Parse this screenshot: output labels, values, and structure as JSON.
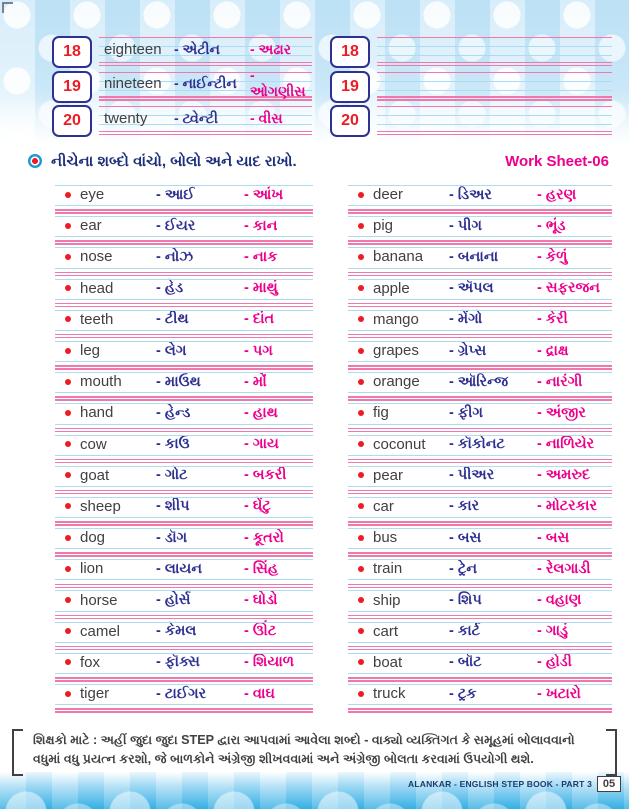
{
  "page": {
    "worksheet_label": "Work Sheet-06",
    "instruction": "નીચેના શબ્દો વાંચો, બોલો અને યાદ રાખો.",
    "note": "શિક્ષકો માટે : અહીં જુદા જુદા STEP દ્વારા આપવામાં આવેલા શબ્દો - વાક્યો વ્યક્તિગત કે સમૂહમાં બોલાવવાનો વધુમાં વધુ પ્રયત્ન કરશો, જે બાળકોને અંગ્રેજી શીખવવામાં અને અંગ્રેજી બોલતા કરવામાં ઉપયોગી થશે.",
    "footer": {
      "book_title": "ALANKAR - ENGLISH STEP BOOK - PART 3",
      "page_number": "05"
    }
  },
  "colors": {
    "magenta": "#ec008c",
    "navy": "#2e3192",
    "red": "#ed1c24",
    "pink_line": "#f078ad",
    "blue_line": "#abdcf2",
    "band_blue": "#29abe2"
  },
  "numbers_section": {
    "left": [
      {
        "num": "18",
        "word": "eighteen",
        "translit": "- એટીન",
        "meaning": "- અઢાર"
      },
      {
        "num": "19",
        "word": "nineteen",
        "translit": "- નાઈન્ટીન",
        "meaning": "- ઓગણીસ"
      },
      {
        "num": "20",
        "word": "twenty",
        "translit": "- ટ્વેન્ટી",
        "meaning": "- વીસ"
      }
    ],
    "right": [
      {
        "num": "18",
        "word": "",
        "translit": "",
        "meaning": ""
      },
      {
        "num": "19",
        "word": "",
        "translit": "",
        "meaning": ""
      },
      {
        "num": "20",
        "word": "",
        "translit": "",
        "meaning": ""
      }
    ]
  },
  "word_lists": {
    "left": [
      {
        "word": "eye",
        "translit": "- આઈ",
        "meaning": "- આંખ"
      },
      {
        "word": "ear",
        "translit": "- ઈયર",
        "meaning": "- કાન"
      },
      {
        "word": "nose",
        "translit": "- નોઝ",
        "meaning": "- નાક"
      },
      {
        "word": "head",
        "translit": "- હેડ",
        "meaning": "- માથું"
      },
      {
        "word": "teeth",
        "translit": "- ટીથ",
        "meaning": "- દાંત"
      },
      {
        "word": "leg",
        "translit": "- લેગ",
        "meaning": "- પગ"
      },
      {
        "word": "mouth",
        "translit": "- માઉથ",
        "meaning": "- મોં"
      },
      {
        "word": "hand",
        "translit": "- હેન્ડ",
        "meaning": "- હાથ"
      },
      {
        "word": "cow",
        "translit": "- કાઉ",
        "meaning": "- ગાય"
      },
      {
        "word": "goat",
        "translit": "- ગોટ",
        "meaning": "- બકરી"
      },
      {
        "word": "sheep",
        "translit": "- શીપ",
        "meaning": "- ઘેંટુ"
      },
      {
        "word": "dog",
        "translit": "- ડૉગ",
        "meaning": "- કૂતરો"
      },
      {
        "word": "lion",
        "translit": "- લાયન",
        "meaning": "- સિંહ"
      },
      {
        "word": "horse",
        "translit": "- હોર્સ",
        "meaning": "- ઘોડો"
      },
      {
        "word": "camel",
        "translit": "- કેમલ",
        "meaning": "- ઊંટ"
      },
      {
        "word": "fox",
        "translit": "- ફૉક્સ",
        "meaning": "- શિયાળ"
      },
      {
        "word": "tiger",
        "translit": "- ટાઈગર",
        "meaning": "- વાઘ"
      }
    ],
    "right": [
      {
        "word": "deer",
        "translit": "- ડિઅર",
        "meaning": "- હરણ"
      },
      {
        "word": "pig",
        "translit": "- પીગ",
        "meaning": "- ભૂંડ"
      },
      {
        "word": "banana",
        "translit": "- બનાના",
        "meaning": "- કેળું"
      },
      {
        "word": "apple",
        "translit": "- ઍપલ",
        "meaning": "- સફરજન"
      },
      {
        "word": "mango",
        "translit": "- મેંગો",
        "meaning": "- કેરી"
      },
      {
        "word": "grapes",
        "translit": "- ગ્રેપ્સ",
        "meaning": "- દ્રાક્ષ"
      },
      {
        "word": "orange",
        "translit": "- ઑરિન્જ",
        "meaning": "- નારંગી"
      },
      {
        "word": "fig",
        "translit": "- ફીગ",
        "meaning": "- અંજીર"
      },
      {
        "word": "coconut",
        "translit": "- કૉકોનટ",
        "meaning": "- નાળિયેર"
      },
      {
        "word": "pear",
        "translit": "- પીઅર",
        "meaning": "- અમરુદ"
      },
      {
        "word": "car",
        "translit": "- કાર",
        "meaning": "- મોટરકાર"
      },
      {
        "word": "bus",
        "translit": "- બસ",
        "meaning": "- બસ"
      },
      {
        "word": "train",
        "translit": "- ટ્રેન",
        "meaning": "- રેલગાડી"
      },
      {
        "word": "ship",
        "translit": "- શિપ",
        "meaning": "- વહાણ"
      },
      {
        "word": "cart",
        "translit": "- કાર્ટ",
        "meaning": "- ગાડું"
      },
      {
        "word": "boat",
        "translit": "- બૉટ",
        "meaning": "- હોડી"
      },
      {
        "word": "truck",
        "translit": "- ટ્રક",
        "meaning": "- ખટારો"
      }
    ]
  }
}
